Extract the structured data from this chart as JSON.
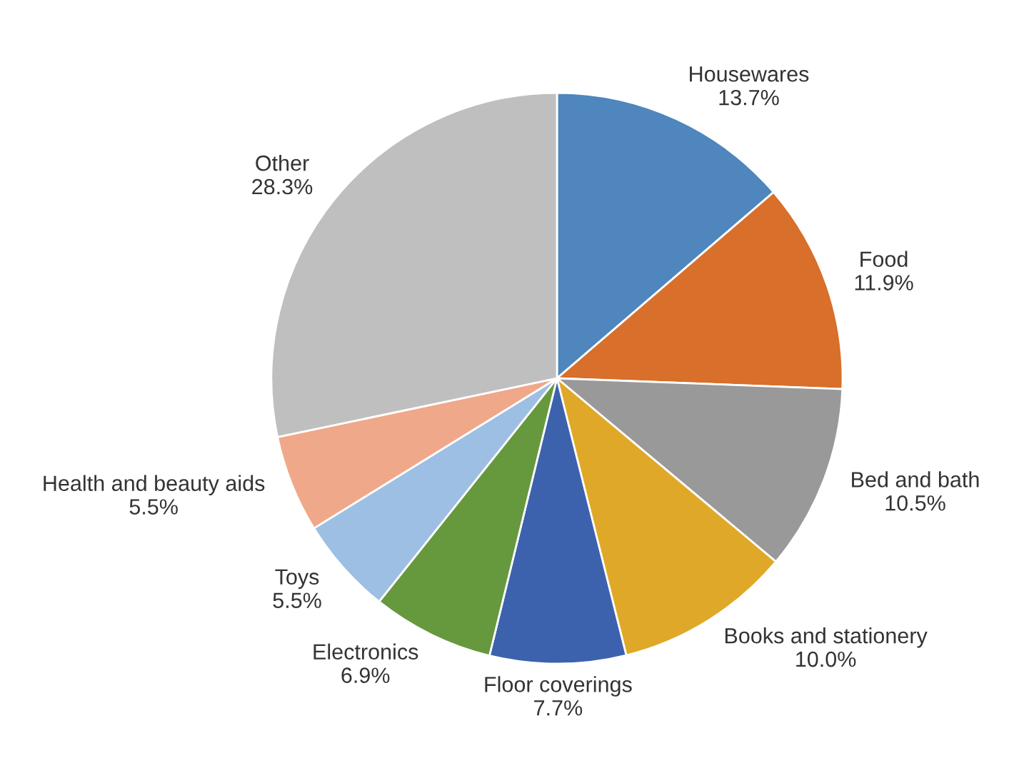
{
  "chart_data": {
    "type": "pie",
    "categories": [
      "Housewares",
      "Food",
      "Bed and bath",
      "Books and stationery",
      "Floor coverings",
      "Electronics",
      "Toys",
      "Health and beauty aids",
      "Other"
    ],
    "values": [
      13.7,
      11.9,
      10.5,
      10.0,
      7.7,
      6.9,
      5.5,
      5.5,
      28.3
    ],
    "colors": [
      "#4e86bd",
      "#d86f2b",
      "#999999",
      "#e0a829",
      "#3d62ad",
      "#66983e",
      "#9dbfe3",
      "#f0a88a",
      "#bfbfbf"
    ],
    "value_labels": [
      "13.7%",
      "11.9%",
      "10.5%",
      "10.0%",
      "7.7%",
      "6.9%",
      "5.5%",
      "5.5%",
      "28.3%"
    ],
    "legend": false
  }
}
